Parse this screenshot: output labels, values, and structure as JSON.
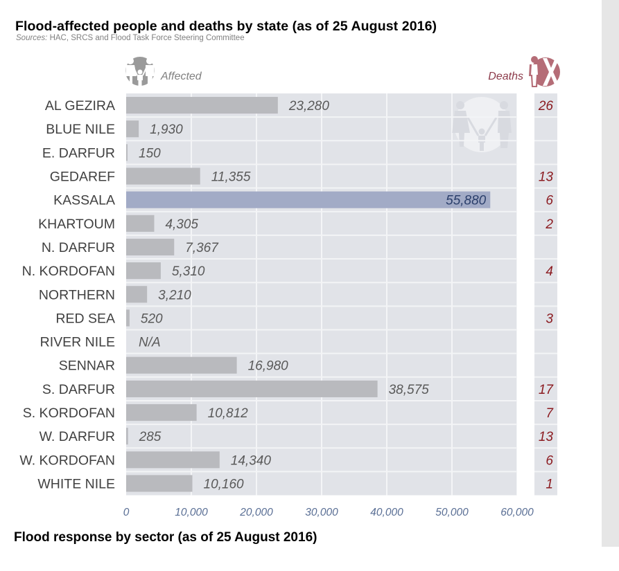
{
  "header": {
    "title": "Flood-affected people and deaths by state (as of 25 August 2016)",
    "sources_label": "Sources:",
    "sources_text": " HAC, SRCS and Flood Task Force Steering Committee"
  },
  "legend": {
    "affected_label": "Affected",
    "affected_icon": "family-icon",
    "deaths_label": "Deaths",
    "deaths_icon": "person-cross-icon"
  },
  "colors": {
    "plot_bg": "#e1e3e8",
    "bar": "#b9babe",
    "highlight_bar": "#a2abc6",
    "value_text": "#595959",
    "highlight_value_text": "#2b3f6b",
    "deaths_text": "#8b1a1f",
    "axis_text": "#5a6f95",
    "state_text": "#404040",
    "deaths_legend": "#b56d77"
  },
  "chart_data": {
    "type": "bar",
    "orientation": "horizontal",
    "title": "Flood-affected people and deaths by state (as of 25 August 2016)",
    "xlabel": "",
    "ylabel": "",
    "xlim": [
      0,
      60000
    ],
    "x_ticks": [
      "0",
      "10,000",
      "20,000",
      "30,000",
      "40,000",
      "50,000",
      "60,000"
    ],
    "x_tick_values": [
      0,
      10000,
      20000,
      30000,
      40000,
      50000,
      60000
    ],
    "grid": true,
    "highlight_category": "KASSALA",
    "categories": [
      "AL GEZIRA",
      "BLUE NILE",
      "E. DARFUR",
      "GEDAREF",
      "KASSALA",
      "KHARTOUM",
      "N. DARFUR",
      "N. KORDOFAN",
      "NORTHERN",
      "RED SEA",
      "RIVER NILE",
      "SENNAR",
      "S. DARFUR",
      "S. KORDOFAN",
      "W. DARFUR",
      "W. KORDOFAN",
      "WHITE NILE"
    ],
    "series": [
      {
        "name": "Affected",
        "values": [
          23280,
          1930,
          150,
          11355,
          55880,
          4305,
          7367,
          5310,
          3210,
          520,
          null,
          16980,
          38575,
          10812,
          285,
          14340,
          10160
        ],
        "labels": [
          "23,280",
          "1,930",
          "150",
          "11,355",
          "55,880",
          "4,305",
          "7,367",
          "5,310",
          "3,210",
          "520",
          "N/A",
          "16,980",
          "38,575",
          "10,812",
          "285",
          "14,340",
          "10,160"
        ]
      },
      {
        "name": "Deaths",
        "values": [
          26,
          null,
          null,
          13,
          6,
          2,
          null,
          4,
          null,
          3,
          null,
          null,
          17,
          7,
          13,
          6,
          1
        ],
        "labels": [
          "26",
          "",
          "",
          "13",
          "6",
          "2",
          "",
          "4",
          "",
          "3",
          "",
          "",
          "17",
          "7",
          "13",
          "6",
          "1"
        ]
      }
    ]
  },
  "next_section": {
    "title": "Flood response by sector (as of 25 August 2016)"
  }
}
